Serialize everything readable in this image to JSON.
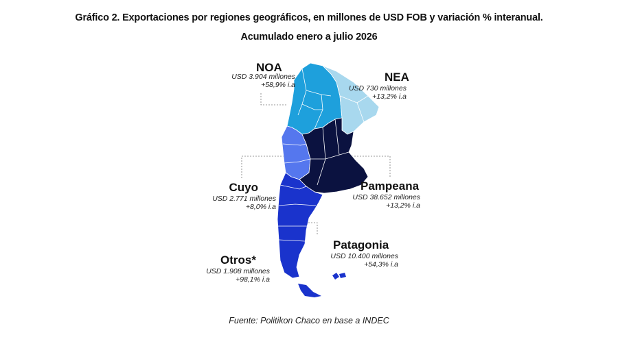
{
  "title": "Gráfico 2. Exportaciones por regiones geográficos, en millones de USD FOB y variación % interanual.",
  "subtitle": "Acumulado enero a julio 2026",
  "regions": {
    "noa": {
      "name": "NOA",
      "value": "USD 3.904 millones",
      "change": "+58,9% i.a",
      "color": "#1ea0dc"
    },
    "nea": {
      "name": "NEA",
      "value": "USD 730 millones",
      "change": "+13,2% i.a",
      "color": "#a8d8ee"
    },
    "cuyo": {
      "name": "Cuyo",
      "value": "USD 2.771 millones",
      "change": "+8,0% i.a",
      "color": "#5577ee"
    },
    "pampeana": {
      "name": "Pampeana",
      "value": "USD 38.652 millones",
      "change": "+13,2% i.a",
      "color": "#0b1240"
    },
    "patagonia": {
      "name": "Patagonia",
      "value": "USD 10.400 millones",
      "change": "+54,3% i.a",
      "color": "#1a33cc"
    },
    "otros": {
      "name": "Otros*",
      "value": "USD 1.908 millones",
      "change": "+98,1% i.a"
    }
  },
  "footer": "Fuente: Politikon Chaco en base a INDEC"
}
